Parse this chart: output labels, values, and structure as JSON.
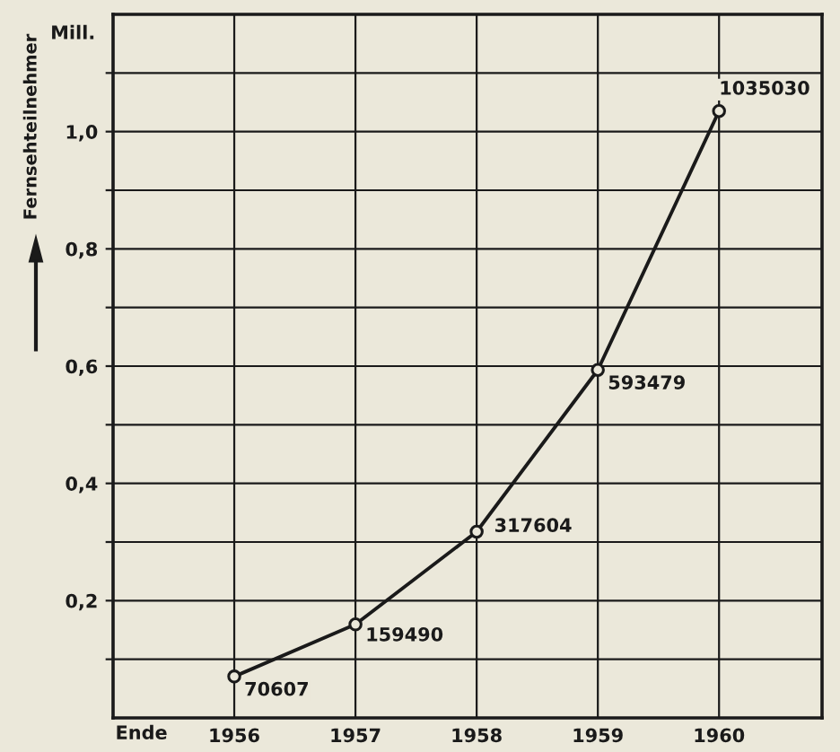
{
  "chart_data": {
    "type": "line",
    "ylabel": "Fernsehteilnehmer",
    "xlabel": "Ende",
    "annotations": [
      "Mill.",
      {
        "text": "70607",
        "x": 1956,
        "y": 0.070607
      },
      {
        "text": "159490",
        "x": 1957,
        "y": 0.15949
      },
      {
        "text": "317604",
        "x": 1958,
        "y": 0.317604
      },
      {
        "text": "593479",
        "x": 1959,
        "y": 0.593479
      },
      {
        "text": "1035030",
        "x": 1960,
        "y": 1.03503
      }
    ],
    "x": [
      1956,
      1957,
      1958,
      1959,
      1960
    ],
    "series": [
      {
        "color": "#1a1a1a",
        "values": [
          0.070607,
          0.15949,
          0.317604,
          0.593479,
          1.03503
        ]
      }
    ],
    "xlim": [
      1955,
      1960.85
    ],
    "xticks": [
      1956,
      1957,
      1958,
      1959,
      1960
    ],
    "ylim": [
      0,
      1.2
    ],
    "yticks": [
      {
        "value": 0.1,
        "label": null
      },
      {
        "value": 0.2,
        "label": "0,2"
      },
      {
        "value": 0.3,
        "label": null
      },
      {
        "value": 0.4,
        "label": "0,4"
      },
      {
        "value": 0.5,
        "label": null
      },
      {
        "value": 0.6,
        "label": "0,6"
      },
      {
        "value": 0.7,
        "label": null
      },
      {
        "value": 0.8,
        "label": "0,8"
      },
      {
        "value": 0.9,
        "label": null
      },
      {
        "value": 1.0,
        "label": "1,0"
      },
      {
        "value": 1.1,
        "label": null
      }
    ],
    "grid": true,
    "marker": "circle",
    "line_style": "solid"
  }
}
